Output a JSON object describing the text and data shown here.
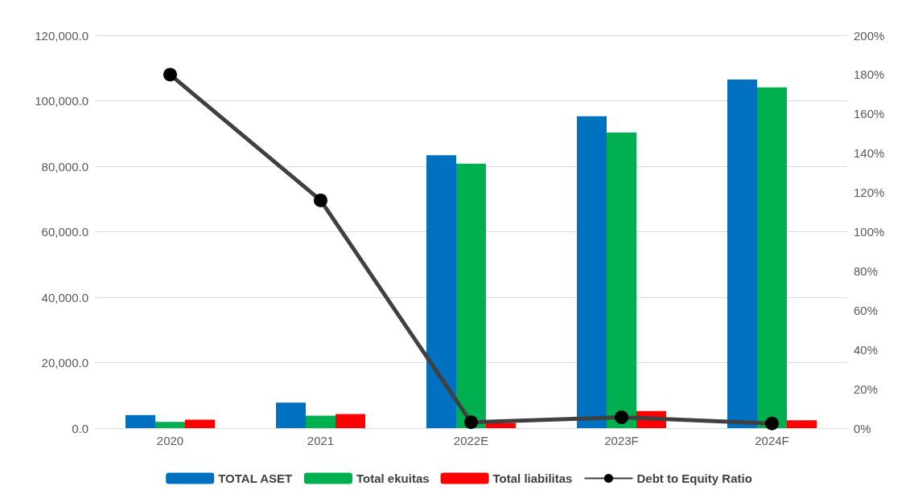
{
  "chart_data": {
    "type": "bar",
    "categories": [
      "2020",
      "2021",
      "2022E",
      "2023F",
      "2024F"
    ],
    "series": [
      {
        "name": "TOTAL ASET",
        "color": "#0070c0",
        "values": [
          4000,
          7800,
          83400,
          95300,
          106500
        ]
      },
      {
        "name": "Total ekuitas",
        "color": "#00b050",
        "values": [
          1900,
          3800,
          80800,
          90300,
          104100
        ]
      },
      {
        "name": "Total liabilitas",
        "color": "#ff0000",
        "values": [
          2600,
          4300,
          1600,
          5200,
          2400
        ]
      },
      {
        "name": "Debt to Equity Ratio",
        "type": "line",
        "axis": "y2",
        "color": "#404040",
        "values": [
          180,
          116,
          3,
          5.5,
          2.4
        ]
      }
    ],
    "ylim": [
      0,
      120000
    ],
    "yticks": [
      {
        "value": 0,
        "label": "0.0"
      },
      {
        "value": 20000,
        "label": "20,000.0"
      },
      {
        "value": 40000,
        "label": "40,000.0"
      },
      {
        "value": 60000,
        "label": "60,000.0"
      },
      {
        "value": 80000,
        "label": "80,000.0"
      },
      {
        "value": 100000,
        "label": "100,000.0"
      },
      {
        "value": 120000,
        "label": "120,000.0"
      }
    ],
    "y2lim": [
      0,
      200
    ],
    "y2ticks": [
      {
        "value": 0,
        "label": "0%"
      },
      {
        "value": 20,
        "label": "20%"
      },
      {
        "value": 40,
        "label": "40%"
      },
      {
        "value": 60,
        "label": "60%"
      },
      {
        "value": 80,
        "label": "80%"
      },
      {
        "value": 100,
        "label": "100%"
      },
      {
        "value": 120,
        "label": "120%"
      },
      {
        "value": 140,
        "label": "140%"
      },
      {
        "value": 160,
        "label": "160%"
      },
      {
        "value": 180,
        "label": "180%"
      },
      {
        "value": 200,
        "label": "200%"
      }
    ],
    "grid": "y",
    "legend": "bottom",
    "marker": "circle"
  }
}
